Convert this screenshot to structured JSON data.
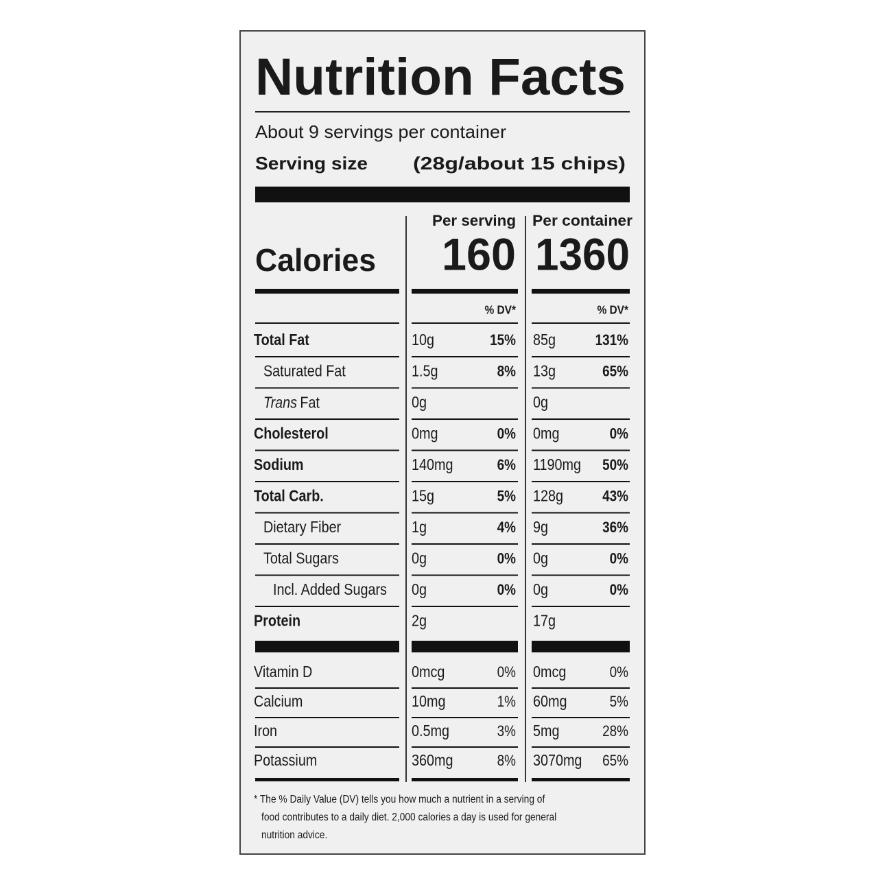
{
  "title": "Nutrition Facts",
  "servings": "About 9 servings per container",
  "serving_size": {
    "label": "Serving size",
    "value": "(28g/about 15 chips)"
  },
  "columns": [
    "Per serving",
    "Per container"
  ],
  "calories": {
    "label": "Calories",
    "values": [
      "160",
      "1360"
    ]
  },
  "dv_headers": [
    "% DV*",
    "% DV*"
  ],
  "nutrients": [
    {
      "name": "Total Fat",
      "serving": [
        "10g",
        "15%"
      ],
      "container": [
        "85g",
        "131%"
      ]
    },
    {
      "name": "Saturated Fat",
      "serving": [
        "1.5g",
        "8%"
      ],
      "container": [
        "13g",
        "65%"
      ]
    },
    {
      "name_italic": "Trans",
      "name": "Fat",
      "serving": [
        "0g"
      ],
      "container": [
        "0g"
      ]
    },
    {
      "name": "Cholesterol",
      "serving": [
        "0mg",
        "0%"
      ],
      "container": [
        "0mg",
        "0%"
      ]
    },
    {
      "name": "Sodium",
      "serving": [
        "140mg",
        "6%"
      ],
      "container": [
        "1190mg",
        "50%"
      ]
    },
    {
      "name": "Total Carb.",
      "serving": [
        "15g",
        "5%"
      ],
      "container": [
        "128g",
        "43%"
      ]
    },
    {
      "name": "Dietary Fiber",
      "serving": [
        "1g",
        "4%"
      ],
      "container": [
        "9g",
        "36%"
      ]
    },
    {
      "name": "Total Sugars",
      "serving": [
        "0g",
        "0%"
      ],
      "container": [
        "0g",
        "0%"
      ]
    },
    {
      "name": "Incl. Added Sugars",
      "serving": [
        "0g",
        "0%"
      ],
      "container": [
        "0g",
        "0%"
      ]
    },
    {
      "name": "Protein",
      "serving": [
        "2g"
      ],
      "container": [
        "17g"
      ]
    }
  ],
  "vitamins": [
    {
      "name": "Vitamin D",
      "serving": [
        "0mcg",
        "0%"
      ],
      "container": [
        "0mcg",
        "0%"
      ]
    },
    {
      "name": "Calcium",
      "serving": [
        "10mg",
        "1%"
      ],
      "container": [
        "60mg",
        "5%"
      ]
    },
    {
      "name": "Iron",
      "serving": [
        "0.5mg",
        "3%"
      ],
      "container": [
        "5mg",
        "28%"
      ]
    },
    {
      "name": "Potassium",
      "serving": [
        "360mg",
        "8%"
      ],
      "container": [
        "3070mg",
        "65%"
      ]
    }
  ],
  "footnote": [
    "* The % Daily Value (DV) tells you how much a nutrient in a serving of",
    "food contributes to a daily diet. 2,000 calories a day is used for general",
    "nutrition advice."
  ]
}
